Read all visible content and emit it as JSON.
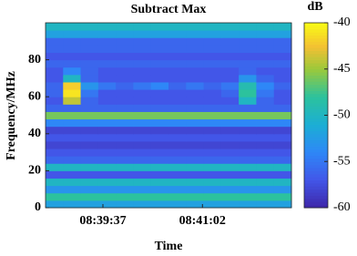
{
  "chart_data": {
    "type": "heatmap",
    "title": "Subtract Max",
    "x_label": "Time",
    "y_label": "Frequency/MHz",
    "colorbar_label": "dB",
    "x": [
      31135.5,
      31150.5,
      31165.5,
      31180.5,
      31195.5,
      31210.5,
      31225.5,
      31240.5,
      31255.5,
      31270.5,
      31285.5,
      31300.5,
      31315.5,
      31330.5
    ],
    "y": [
      2,
      6,
      10,
      14,
      18,
      22,
      26,
      30,
      34,
      38,
      42,
      46,
      50,
      54,
      58,
      62,
      66,
      70,
      74,
      78,
      82,
      86,
      90,
      94,
      98
    ],
    "z": [
      [
        -52,
        -52,
        -52,
        -52,
        -52,
        -52,
        -52,
        -52,
        -52,
        -52,
        -52,
        -52,
        -52,
        -52
      ],
      [
        -48,
        -48,
        -48,
        -48,
        -48,
        -48,
        -48,
        -48,
        -48,
        -48,
        -48,
        -48,
        -48,
        -48
      ],
      [
        -53,
        -53,
        -53,
        -53,
        -53,
        -53,
        -53,
        -53,
        -53,
        -53,
        -53,
        -53,
        -53,
        -53
      ],
      [
        -50,
        -50,
        -50,
        -50,
        -50,
        -50,
        -50,
        -50,
        -50,
        -50,
        -50,
        -50,
        -50,
        -50
      ],
      [
        -57,
        -57,
        -57,
        -57,
        -57,
        -57,
        -57,
        -57,
        -57,
        -57,
        -57,
        -57,
        -57,
        -57
      ],
      [
        -50,
        -50,
        -50,
        -50,
        -50,
        -50,
        -50,
        -50,
        -50,
        -50,
        -50,
        -50,
        -50,
        -50
      ],
      [
        -56,
        -56,
        -56,
        -56,
        -56,
        -56,
        -56,
        -56,
        -56,
        -56,
        -56,
        -56,
        -56,
        -56
      ],
      [
        -57,
        -57,
        -57,
        -57,
        -57,
        -57,
        -57,
        -57,
        -57,
        -57,
        -57,
        -57,
        -57,
        -57
      ],
      [
        -58,
        -58,
        -58,
        -58,
        -58,
        -58,
        -58,
        -58,
        -58,
        -58,
        -58,
        -58,
        -58,
        -58
      ],
      [
        -57,
        -57,
        -57,
        -57,
        -57,
        -57,
        -57,
        -57,
        -57,
        -57,
        -57,
        -57,
        -57,
        -57
      ],
      [
        -58,
        -58,
        -58,
        -58,
        -58,
        -58,
        -58,
        -58,
        -58,
        -58,
        -58,
        -58,
        -58,
        -58
      ],
      [
        -54,
        -54,
        -54,
        -54,
        -54,
        -54,
        -54,
        -54,
        -54,
        -54,
        -54,
        -54,
        -54,
        -54
      ],
      [
        -46,
        -46,
        -46,
        -46,
        -46,
        -46,
        -46,
        -46,
        -46,
        -46,
        -46,
        -46,
        -46,
        -46
      ],
      [
        -56,
        -56,
        -56,
        -56,
        -56,
        -56,
        -56,
        -56,
        -56,
        -56,
        -56,
        -56,
        -56,
        -56
      ],
      [
        -57,
        -44,
        -56,
        -57,
        -57,
        -57,
        -57,
        -57,
        -57,
        -57,
        -57,
        -50,
        -56,
        -57
      ],
      [
        -56,
        -41,
        -55,
        -57,
        -57,
        -57,
        -57,
        -57,
        -57,
        -57,
        -56,
        -48,
        -55,
        -57
      ],
      [
        -56,
        -42,
        -53,
        -55,
        -56,
        -55,
        -54,
        -56,
        -55,
        -56,
        -55,
        -49,
        -54,
        -56
      ],
      [
        -57,
        -50,
        -56,
        -57,
        -57,
        -57,
        -57,
        -57,
        -57,
        -57,
        -57,
        -53,
        -56,
        -57
      ],
      [
        -57,
        -54,
        -56,
        -57,
        -57,
        -57,
        -57,
        -57,
        -57,
        -57,
        -57,
        -56,
        -57,
        -57
      ],
      [
        -56,
        -56,
        -56,
        -56,
        -56,
        -56,
        -56,
        -56,
        -56,
        -56,
        -56,
        -56,
        -56,
        -56
      ],
      [
        -57,
        -57,
        -57,
        -57,
        -57,
        -57,
        -57,
        -57,
        -57,
        -57,
        -57,
        -57,
        -57,
        -57
      ],
      [
        -56,
        -56,
        -56,
        -56,
        -56,
        -56,
        -56,
        -56,
        -56,
        -56,
        -56,
        -56,
        -56,
        -56
      ],
      [
        -56,
        -56,
        -56,
        -56,
        -56,
        -56,
        -56,
        -56,
        -56,
        -56,
        -56,
        -56,
        -56,
        -56
      ],
      [
        -52,
        -52,
        -52,
        -52,
        -52,
        -52,
        -52,
        -52,
        -52,
        -52,
        -52,
        -52,
        -52,
        -52
      ],
      [
        -50,
        -50,
        -50,
        -50,
        -50,
        -50,
        -50,
        -50,
        -50,
        -50,
        -50,
        -50,
        -50,
        -50
      ]
    ],
    "xlim": [
      31128,
      31338
    ],
    "xticks": [
      {
        "value": 31177,
        "label": "08:39:37"
      },
      {
        "value": 31262,
        "label": "08:41:02"
      }
    ],
    "ylim": [
      0,
      100
    ],
    "yticks": [
      0,
      20,
      40,
      60,
      80
    ],
    "clim": [
      -60,
      -40
    ],
    "cticks": [
      -40,
      -45,
      -50,
      -55,
      -60
    ],
    "colormap": "parula"
  }
}
